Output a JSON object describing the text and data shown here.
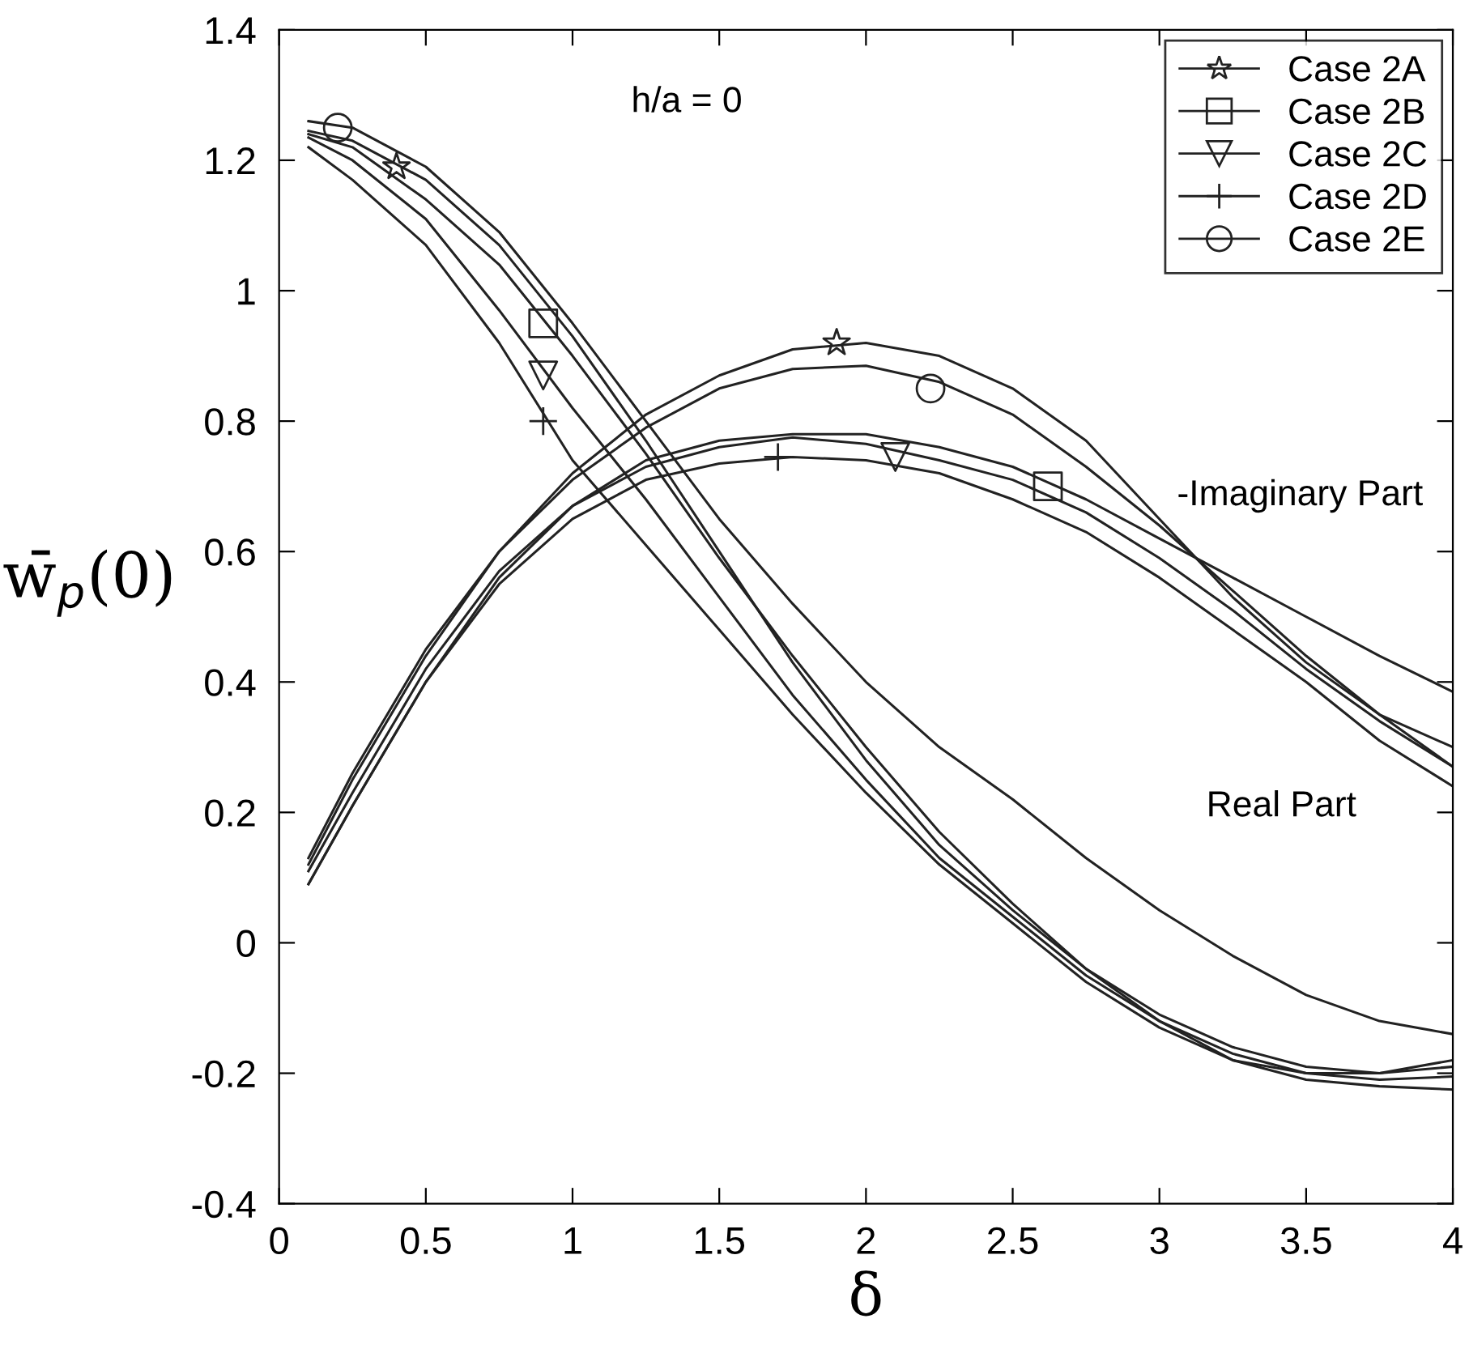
{
  "chart_data": {
    "type": "line",
    "xlabel": "δ",
    "ylabel": "w̄$_{p}$(0)",
    "annotations": [
      "h/a = 0",
      "-Imaginary Part",
      "Real Part"
    ],
    "x": [
      0.1,
      0.25,
      0.5,
      0.75,
      1.0,
      1.25,
      1.5,
      1.75,
      2.0,
      2.25,
      2.5,
      2.75,
      3.0,
      3.25,
      3.5,
      3.75,
      4.0
    ],
    "series": [
      {
        "color": "#222222",
        "values": [
          1.245,
          1.23,
          1.17,
          1.07,
          0.93,
          0.77,
          0.6,
          0.43,
          0.28,
          0.15,
          0.05,
          -0.04,
          -0.11,
          -0.16,
          -0.19,
          -0.2,
          -0.18
        ]
      },
      {
        "color": "#222222",
        "values": [
          1.24,
          1.22,
          1.14,
          1.04,
          0.9,
          0.75,
          0.59,
          0.44,
          0.3,
          0.17,
          0.06,
          -0.04,
          -0.12,
          -0.18,
          -0.21,
          -0.22,
          -0.225
        ]
      },
      {
        "color": "#222222",
        "values": [
          1.235,
          1.2,
          1.11,
          0.97,
          0.82,
          0.68,
          0.53,
          0.38,
          0.25,
          0.13,
          0.04,
          -0.05,
          -0.12,
          -0.17,
          -0.2,
          -0.21,
          -0.205
        ]
      },
      {
        "color": "#222222",
        "values": [
          1.22,
          1.17,
          1.07,
          0.92,
          0.74,
          0.61,
          0.48,
          0.35,
          0.23,
          0.12,
          0.03,
          -0.06,
          -0.13,
          -0.18,
          -0.2,
          -0.2,
          -0.19
        ]
      },
      {
        "color": "#222222",
        "values": [
          1.26,
          1.25,
          1.19,
          1.09,
          0.95,
          0.8,
          0.65,
          0.52,
          0.4,
          0.3,
          0.22,
          0.13,
          0.05,
          -0.02,
          -0.08,
          -0.12,
          -0.14
        ]
      },
      {
        "color": "#222222",
        "values": [
          0.12,
          0.25,
          0.44,
          0.6,
          0.72,
          0.81,
          0.87,
          0.91,
          0.92,
          0.9,
          0.85,
          0.77,
          0.65,
          0.53,
          0.43,
          0.35,
          0.3
        ]
      },
      {
        "color": "#222222",
        "values": [
          0.09,
          0.21,
          0.4,
          0.56,
          0.67,
          0.74,
          0.77,
          0.78,
          0.78,
          0.76,
          0.73,
          0.68,
          0.62,
          0.56,
          0.5,
          0.44,
          0.385
        ]
      },
      {
        "color": "#222222",
        "values": [
          0.11,
          0.23,
          0.42,
          0.57,
          0.67,
          0.73,
          0.76,
          0.775,
          0.765,
          0.74,
          0.71,
          0.66,
          0.59,
          0.51,
          0.42,
          0.34,
          0.27
        ]
      },
      {
        "color": "#222222",
        "values": [
          0.09,
          0.21,
          0.4,
          0.55,
          0.65,
          0.71,
          0.735,
          0.745,
          0.74,
          0.72,
          0.68,
          0.63,
          0.56,
          0.48,
          0.4,
          0.31,
          0.24
        ]
      },
      {
        "color": "#222222",
        "values": [
          0.13,
          0.26,
          0.45,
          0.6,
          0.71,
          0.79,
          0.85,
          0.88,
          0.885,
          0.86,
          0.81,
          0.73,
          0.64,
          0.54,
          0.44,
          0.35,
          0.27
        ]
      },
      {
        "type": "scatter",
        "name": "Case 2A",
        "marker": "star",
        "color": "#222222",
        "x": [
          0.4,
          1.9
        ],
        "values": [
          1.19,
          0.92
        ]
      },
      {
        "type": "scatter",
        "name": "Case 2B",
        "marker": "square",
        "color": "#222222",
        "x": [
          0.9,
          2.62
        ],
        "values": [
          0.95,
          0.7
        ]
      },
      {
        "type": "scatter",
        "name": "Case 2C",
        "marker": "triangle",
        "color": "#222222",
        "x": [
          0.9,
          2.1
        ],
        "values": [
          0.87,
          0.745
        ]
      },
      {
        "type": "scatter",
        "name": "Case 2D",
        "marker": "cross",
        "color": "#222222",
        "x": [
          0.9,
          1.7
        ],
        "values": [
          0.8,
          0.745
        ]
      },
      {
        "type": "scatter",
        "name": "Case 2E",
        "marker": "circle",
        "color": "#222222",
        "x": [
          0.2,
          2.22
        ],
        "values": [
          1.25,
          0.85
        ]
      }
    ],
    "xlim": [
      0,
      4
    ],
    "xticks": [
      0,
      0.5,
      1,
      1.5,
      2,
      2.5,
      3,
      3.5,
      4
    ],
    "ylim": [
      -0.4,
      1.4
    ],
    "yticks": [
      -0.4,
      -0.2,
      0,
      0.2,
      0.4,
      0.6,
      0.8,
      1,
      1.2,
      1.4
    ],
    "legend": "top right"
  }
}
